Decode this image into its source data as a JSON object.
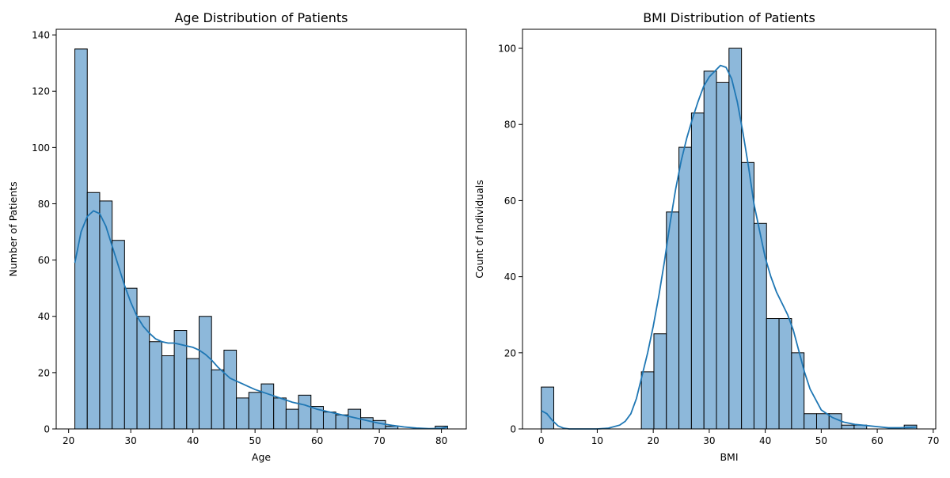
{
  "chart_data": [
    {
      "type": "bar",
      "title": "Age Distribution of Patients",
      "xlabel": "Age",
      "ylabel": "Number of Patients",
      "xlim": [
        18.0,
        84.0
      ],
      "ylim": [
        0,
        142
      ],
      "xticks": [
        20,
        30,
        40,
        50,
        60,
        70,
        80
      ],
      "yticks": [
        0,
        20,
        40,
        60,
        80,
        100,
        120,
        140
      ],
      "bins": {
        "start": 21,
        "width": 2,
        "count": 30
      },
      "values": [
        135,
        84,
        81,
        67,
        50,
        40,
        31,
        26,
        35,
        25,
        40,
        21,
        28,
        11,
        13,
        16,
        11,
        7,
        12,
        8,
        6,
        5,
        7,
        4,
        3,
        1,
        0,
        0,
        0,
        1
      ],
      "kde": {
        "x": [
          21,
          22,
          23,
          24,
          25,
          26,
          27,
          28,
          29,
          30,
          31,
          32,
          33,
          34,
          35,
          36,
          37,
          38,
          39,
          40,
          41,
          42,
          43,
          44,
          45,
          46,
          47,
          48,
          49,
          50,
          52,
          54,
          56,
          58,
          60,
          62,
          64,
          66,
          68,
          70,
          72,
          74,
          76,
          78,
          80,
          81
        ],
        "y": [
          59,
          70,
          75.5,
          77.5,
          76.5,
          72,
          65,
          58,
          51,
          45,
          40,
          36.5,
          34,
          32,
          31,
          30.5,
          30.5,
          30,
          29.5,
          29,
          28,
          26.5,
          24.5,
          22,
          20,
          18,
          17,
          16,
          15,
          14,
          12.5,
          11,
          9.5,
          8.5,
          7,
          6,
          5,
          4,
          3,
          2,
          1.3,
          0.7,
          0.3,
          0.1,
          0.2,
          0.7
        ]
      }
    },
    {
      "type": "bar",
      "title": "BMI Distribution of Patients",
      "xlabel": "BMI",
      "ylabel": "Count of Individuals",
      "xlim": [
        -3.35,
        70.45
      ],
      "ylim": [
        0,
        105
      ],
      "xticks": [
        0,
        10,
        20,
        30,
        40,
        50,
        60,
        70
      ],
      "yticks": [
        0,
        20,
        40,
        60,
        80,
        100
      ],
      "bins": {
        "start": 0,
        "width": 2.235,
        "count": 30
      },
      "values": [
        11,
        0,
        0,
        0,
        0,
        0,
        0,
        0,
        15,
        25,
        57,
        74,
        83,
        94,
        91,
        100,
        70,
        54,
        29,
        29,
        20,
        4,
        4,
        4,
        1,
        1,
        0,
        0,
        0,
        1
      ],
      "kde": {
        "x": [
          0,
          1,
          2,
          3,
          4,
          5,
          6,
          8,
          10,
          12,
          14,
          15,
          16,
          17,
          18,
          19,
          20,
          21,
          22,
          23,
          24,
          25,
          26,
          27,
          28,
          29,
          30,
          31,
          32,
          33,
          34,
          35,
          36,
          37,
          38,
          39,
          40,
          41,
          42,
          43,
          44,
          45,
          46,
          47,
          48,
          50,
          52,
          54,
          56,
          58,
          60,
          62,
          64,
          66,
          67
        ],
        "y": [
          4.8,
          4,
          2.2,
          0.8,
          0.2,
          0,
          0,
          0,
          0,
          0.2,
          1,
          2,
          4,
          8,
          14,
          20,
          27,
          35,
          44,
          54,
          63,
          70.5,
          76.5,
          81.5,
          86,
          90,
          92.5,
          94,
          95.5,
          95,
          92,
          86,
          78,
          69,
          59,
          52,
          45,
          40,
          36,
          33,
          30,
          26,
          20.5,
          15,
          10.5,
          5,
          3,
          1.8,
          1.2,
          0.9,
          0.6,
          0.3,
          0.3,
          0.4,
          0.5
        ]
      }
    }
  ]
}
